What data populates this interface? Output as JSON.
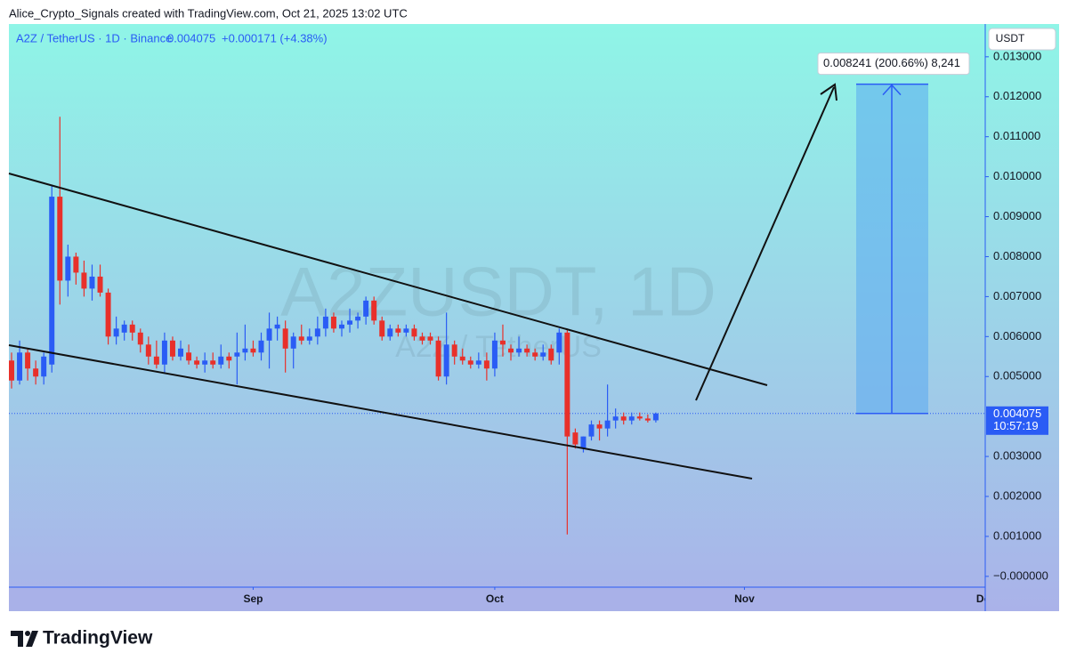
{
  "header": "Alice_Crypto_Signals created with TradingView.com, Oct 21, 2025 13:02 UTC",
  "brand": "TradingView",
  "chart_data": {
    "type": "candlestick",
    "symbol": "A2Z / TetherUS · 1D · Binance",
    "change": "+0.000171 (+4.38%)",
    "watermark": "A2ZUSDT, 1D",
    "watermark_sub": "A2Z / TetherUS",
    "currency": "USDT",
    "countdown": "10:57:19",
    "up_color": "#2a5cf5",
    "down_color": "#e8302a",
    "categories": [
      null,
      null,
      null,
      null,
      null,
      null,
      null,
      null,
      null,
      null,
      null,
      null,
      null,
      null,
      null,
      null,
      null,
      null,
      null,
      null,
      null,
      null,
      null,
      null,
      null,
      null,
      null,
      null,
      null,
      null,
      null,
      null,
      null,
      null,
      null,
      null,
      null,
      null,
      null,
      null,
      null,
      null,
      null,
      null,
      null,
      null,
      null,
      null,
      null,
      null,
      null,
      null,
      null,
      null,
      null,
      null,
      null,
      null,
      null,
      null,
      null,
      null,
      null,
      null,
      null,
      null,
      null,
      null,
      null,
      null,
      null,
      null,
      null,
      null,
      null,
      null,
      null,
      null,
      null,
      null,
      null
    ],
    "open": [
      0.0054,
      0.0049,
      0.0056,
      0.0052,
      0.005,
      0.0053,
      0.0095,
      0.0074,
      0.008,
      0.0076,
      0.0072,
      0.0075,
      0.0071,
      0.006,
      0.0061,
      0.0063,
      0.0061,
      0.0058,
      0.0055,
      0.0053,
      0.0059,
      0.0055,
      0.0056,
      0.0054,
      0.0053,
      0.0054,
      0.0053,
      0.0055,
      0.0055,
      0.0056,
      0.0057,
      0.0056,
      0.0059,
      0.0062,
      0.0062,
      0.0057,
      0.006,
      0.0059,
      0.006,
      0.0062,
      0.0065,
      0.0062,
      0.0063,
      0.0064,
      0.0065,
      0.0069,
      0.0064,
      0.006,
      0.0062,
      0.0061,
      0.0062,
      0.006,
      0.006,
      0.0059,
      0.005,
      0.0058,
      0.0055,
      0.0054,
      0.0053,
      0.0054,
      0.0052,
      0.0059,
      0.0057,
      0.0056,
      0.0057,
      0.0056,
      0.0055,
      0.0057,
      0.0056,
      0.0061,
      0.0036,
      0.0032,
      0.0035,
      0.0038,
      0.0037,
      0.0039,
      0.004,
      0.0039,
      0.004,
      0.00395,
      0.003904
    ],
    "high": [
      0.0056,
      0.0059,
      0.0057,
      0.0054,
      0.0056,
      0.0098,
      0.0115,
      0.0083,
      0.0081,
      0.0079,
      0.0078,
      0.0078,
      0.0072,
      0.0065,
      0.0064,
      0.0064,
      0.0062,
      0.006,
      0.0059,
      0.0061,
      0.006,
      0.0059,
      0.0058,
      0.0055,
      0.0056,
      0.0056,
      0.0058,
      0.0056,
      0.0061,
      0.0063,
      0.0059,
      0.0061,
      0.0066,
      0.0065,
      0.0064,
      0.0061,
      0.0063,
      0.0062,
      0.0065,
      0.0067,
      0.0066,
      0.0064,
      0.0067,
      0.0066,
      0.007,
      0.007,
      0.0065,
      0.0063,
      0.0063,
      0.0063,
      0.0063,
      0.0061,
      0.0061,
      0.006,
      0.0066,
      0.0059,
      0.0057,
      0.0055,
      0.0056,
      0.0056,
      0.0061,
      0.0063,
      0.0058,
      0.006,
      0.0058,
      0.0057,
      0.0058,
      0.0058,
      0.0062,
      0.0062,
      0.0037,
      0.0035,
      0.0039,
      0.0039,
      0.0048,
      0.0042,
      0.0041,
      0.0041,
      0.0041,
      0.00405,
      0.0041
    ],
    "low": [
      0.0047,
      0.0048,
      0.0049,
      0.0048,
      0.0048,
      0.0051,
      0.0068,
      0.007,
      0.0073,
      0.007,
      0.0069,
      0.007,
      0.0058,
      0.0058,
      0.0059,
      0.0059,
      0.0056,
      0.0053,
      0.0052,
      0.0051,
      0.0054,
      0.0054,
      0.0053,
      0.0052,
      0.0051,
      0.0052,
      0.0052,
      0.0052,
      0.0048,
      0.0054,
      0.0055,
      0.0054,
      0.0052,
      0.0059,
      0.0051,
      0.0052,
      0.0058,
      0.0058,
      0.0058,
      0.006,
      0.0061,
      0.006,
      0.0061,
      0.0062,
      0.0063,
      0.0063,
      0.0059,
      0.0059,
      0.006,
      0.006,
      0.0059,
      0.0058,
      0.0058,
      0.0049,
      0.0048,
      0.0053,
      0.0053,
      0.0052,
      0.0052,
      0.0049,
      0.005,
      0.0055,
      0.0054,
      0.0055,
      0.0055,
      0.0054,
      0.0054,
      0.0053,
      0.0053,
      0.00105,
      0.0032,
      0.0031,
      0.0034,
      0.0034,
      0.0035,
      0.0037,
      0.0038,
      0.0038,
      0.0039,
      0.00385,
      0.00385
    ],
    "close": [
      0.0049,
      0.0056,
      0.0052,
      0.005,
      0.0055,
      0.0095,
      0.0074,
      0.008,
      0.0076,
      0.0072,
      0.0075,
      0.0071,
      0.006,
      0.0062,
      0.0063,
      0.0061,
      0.0058,
      0.0055,
      0.0053,
      0.0059,
      0.0055,
      0.0057,
      0.0054,
      0.0053,
      0.0054,
      0.0053,
      0.0055,
      0.0054,
      0.0056,
      0.0057,
      0.0056,
      0.0059,
      0.0062,
      0.0063,
      0.0057,
      0.006,
      0.0059,
      0.006,
      0.0062,
      0.0065,
      0.0062,
      0.0063,
      0.0064,
      0.0065,
      0.0069,
      0.0064,
      0.006,
      0.0062,
      0.0061,
      0.0062,
      0.006,
      0.0059,
      0.0059,
      0.005,
      0.0058,
      0.0055,
      0.0054,
      0.0053,
      0.0054,
      0.0052,
      0.0059,
      0.0058,
      0.0056,
      0.0057,
      0.0056,
      0.0055,
      0.0056,
      0.0054,
      0.0061,
      0.0035,
      0.0033,
      0.0035,
      0.0038,
      0.0037,
      0.0039,
      0.004,
      0.0039,
      0.004,
      0.00395,
      0.0039,
      0.004075
    ],
    "projection": {
      "change": 0.008241,
      "label": "0.008241 (200.66%) 8,241"
    },
    "xlim": [
      -0.33,
      120.9
    ],
    "xticks": [
      {
        "value": 30,
        "label": "Sep"
      },
      {
        "value": 60,
        "label": "Oct"
      },
      {
        "value": 91,
        "label": "Nov"
      },
      {
        "value": 121,
        "label": "Dec"
      }
    ],
    "ylim": [
      -0.00027,
      0.01382
    ],
    "yticks": [
      {
        "value": 0.013,
        "label": "0.013000"
      },
      {
        "value": 0.012,
        "label": "0.012000"
      },
      {
        "value": 0.011,
        "label": "0.011000"
      },
      {
        "value": 0.01,
        "label": "0.010000"
      },
      {
        "value": 0.009,
        "label": "0.009000"
      },
      {
        "value": 0.008,
        "label": "0.008000"
      },
      {
        "value": 0.007,
        "label": "0.007000"
      },
      {
        "value": 0.006,
        "label": "0.006000"
      },
      {
        "value": 0.005,
        "label": "0.005000"
      },
      {
        "value": 0.003,
        "label": "0.003000"
      },
      {
        "value": 0.002,
        "label": "0.002000"
      },
      {
        "value": 0.001,
        "label": "0.001000"
      },
      {
        "value": 0,
        "label": "−0.000000"
      }
    ]
  }
}
